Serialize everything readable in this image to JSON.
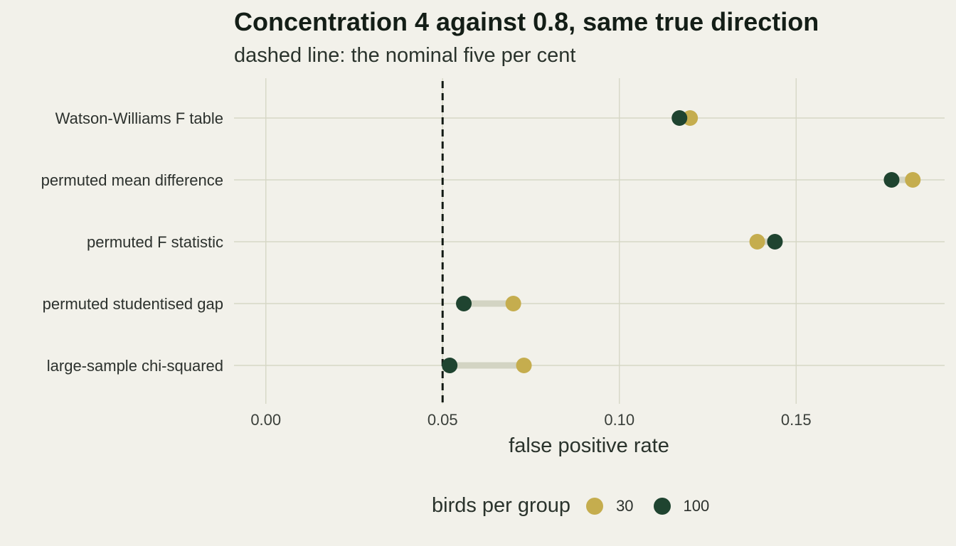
{
  "colors": {
    "background": "#f2f1ea",
    "grid": "#d6d7c6",
    "segment": "#d3d4c3",
    "reference_line": "#121a14",
    "series_30": "#c5ad4e",
    "series_100": "#1f4430"
  },
  "chart_data": {
    "type": "dumbbell",
    "title": "Concentration 4 against 0.8, same true direction",
    "subtitle": "dashed line: the nominal five per cent",
    "xlabel": "false positive rate",
    "ylabel": "",
    "xlim": [
      -0.009,
      0.192
    ],
    "x_ticks": [
      0.0,
      0.05,
      0.1,
      0.15
    ],
    "x_tick_labels": [
      "0.00",
      "0.05",
      "0.10",
      "0.15"
    ],
    "reference_line": {
      "x": 0.05,
      "style": "dashed"
    },
    "grid": true,
    "legend": {
      "title": "birds per group",
      "placement": "bottom"
    },
    "categories": [
      "Watson-Williams F table",
      "permuted mean difference",
      "permuted F statistic",
      "permuted studentised gap",
      "large-sample chi-squared"
    ],
    "series": [
      {
        "name": "30",
        "color_key": "series_30",
        "values": [
          0.12,
          0.183,
          0.139,
          0.07,
          0.073
        ]
      },
      {
        "name": "100",
        "color_key": "series_100",
        "values": [
          0.117,
          0.177,
          0.144,
          0.056,
          0.052
        ]
      }
    ]
  }
}
